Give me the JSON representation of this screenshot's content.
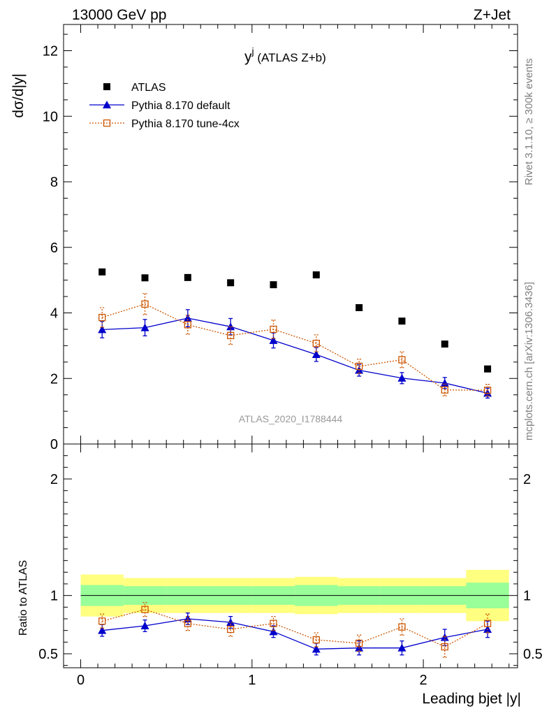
{
  "header": {
    "energy_label": "13000 GeV pp",
    "process_label": "Z+Jet"
  },
  "side_text": {
    "rivet": "Rivet 3.1.10, ≥ 300k events",
    "mcplots": "mcplots.cern.ch [arXiv:1306.3436]"
  },
  "chart_data": {
    "type": "scatter",
    "title": "y",
    "title_superscript": "j",
    "title_suffix": " (ATLAS Z+b)",
    "watermark": "ATLAS_2020_I1788444",
    "ylabel": "dσ/d|y|",
    "xlabel": "Leading bjet |y|",
    "ratio_ylabel": "Ratio to ATLAS",
    "xlim": [
      -0.1,
      2.55
    ],
    "ylim": [
      0,
      12.8
    ],
    "ratio_ylim": [
      0.38,
      2.3
    ],
    "x_ticks": [
      "0",
      "1",
      "2"
    ],
    "y_ticks": [
      "0",
      "2",
      "4",
      "6",
      "8",
      "10",
      "12"
    ],
    "ratio_y_ticks": [
      "0.5",
      "1",
      "2"
    ],
    "bins": [
      [
        0,
        0.25
      ],
      [
        0.25,
        0.5
      ],
      [
        0.5,
        0.75
      ],
      [
        0.75,
        1.0
      ],
      [
        1.0,
        1.25
      ],
      [
        1.25,
        1.5
      ],
      [
        1.5,
        1.75
      ],
      [
        1.75,
        2.0
      ],
      [
        2.0,
        2.25
      ],
      [
        2.25,
        2.5
      ]
    ],
    "x": [
      0.125,
      0.375,
      0.625,
      0.875,
      1.125,
      1.375,
      1.625,
      1.875,
      2.125,
      2.375
    ],
    "band_inner": [
      0.09,
      0.08,
      0.08,
      0.08,
      0.08,
      0.09,
      0.08,
      0.08,
      0.08,
      0.11
    ],
    "band_outer": [
      0.18,
      0.15,
      0.15,
      0.15,
      0.15,
      0.16,
      0.15,
      0.15,
      0.15,
      0.22
    ],
    "series": [
      {
        "name": "ATLAS",
        "style": "data",
        "color": "#000000",
        "values": [
          5.25,
          5.07,
          5.08,
          4.92,
          4.86,
          5.16,
          4.16,
          3.75,
          3.05,
          2.29
        ],
        "errors": [
          0,
          0,
          0,
          0,
          0,
          0,
          0,
          0,
          0,
          0
        ],
        "ratio": [
          1,
          1,
          1,
          1,
          1,
          1,
          1,
          1,
          1,
          1
        ],
        "ratio_errors": [
          0,
          0,
          0,
          0,
          0,
          0,
          0,
          0,
          0,
          0
        ]
      },
      {
        "name": "Pythia 8.170 default",
        "style": "solid",
        "color": "#0000cc",
        "values": [
          3.49,
          3.55,
          3.84,
          3.58,
          3.16,
          2.73,
          2.25,
          2.01,
          1.86,
          1.55
        ],
        "errors": [
          0.25,
          0.25,
          0.26,
          0.25,
          0.23,
          0.21,
          0.18,
          0.17,
          0.17,
          0.15
        ],
        "ratio": [
          0.7,
          0.74,
          0.8,
          0.77,
          0.69,
          0.54,
          0.55,
          0.55,
          0.64,
          0.71
        ],
        "ratio_errors": [
          0.05,
          0.05,
          0.05,
          0.05,
          0.05,
          0.05,
          0.06,
          0.06,
          0.07,
          0.07
        ]
      },
      {
        "name": "Pythia 8.170 tune-4cx",
        "style": "dotted",
        "color": "#cc5500",
        "values": [
          3.86,
          4.27,
          3.64,
          3.31,
          3.5,
          3.07,
          2.37,
          2.57,
          1.65,
          1.64
        ],
        "errors": [
          0.3,
          0.32,
          0.29,
          0.27,
          0.28,
          0.26,
          0.22,
          0.24,
          0.18,
          0.18
        ],
        "ratio": [
          0.78,
          0.88,
          0.76,
          0.71,
          0.76,
          0.62,
          0.59,
          0.73,
          0.56,
          0.76
        ],
        "ratio_errors": [
          0.06,
          0.06,
          0.06,
          0.06,
          0.06,
          0.06,
          0.07,
          0.07,
          0.09,
          0.08
        ]
      }
    ]
  }
}
